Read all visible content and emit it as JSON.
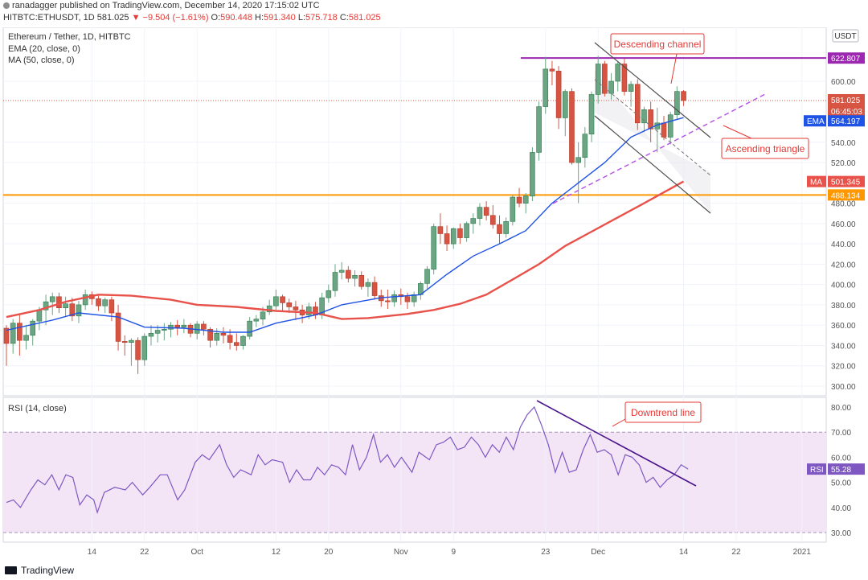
{
  "header": {
    "publisher": "ranadagger",
    "published_text": "published on TradingView.com, December 14, 2020 17:15:02 UTC",
    "symbol": "HITBTC:ETHUSDT, 1D",
    "last": "581.025",
    "change": "−9.504 (−1.61%)",
    "o_label": "O:",
    "o_value": "590.448",
    "h_label": "H:",
    "h_value": "591.340",
    "l_label": "L:",
    "l_value": "575.718",
    "c_label": "C:",
    "c_value": "581.025"
  },
  "legend": {
    "title": "Ethereum / Tether, 1D, HITBTC",
    "ema": "EMA (20, close, 0)",
    "ma": "MA (50, close, 0)",
    "rsi": "RSI (14, close)"
  },
  "footer": {
    "brand": "TradingView"
  },
  "colors": {
    "bull": "#6ba583",
    "bear": "#d75442",
    "ema": "#1e53e5",
    "ma": "#e8524a",
    "resistance": "#9c27b0",
    "support": "#ff9800",
    "rsi": "#7e57c2",
    "rsi_band": "#f3e5f5",
    "trend": "#4a148c",
    "annotation": "#e53935",
    "channel": "#4d4d4d"
  },
  "chart_data": [
    {
      "type": "candlestick",
      "title": "Ethereum / Tether, 1D, HITBTC",
      "currency": "USDT",
      "ylim": [
        290,
        640
      ],
      "y_ticks": [
        300,
        320,
        340,
        360,
        380,
        400,
        420,
        440,
        460,
        480,
        520,
        540,
        600
      ],
      "x_ticks": [
        "14",
        "22",
        "Oct",
        "12",
        "20",
        "Nov",
        "9",
        "23",
        "Dec",
        "14",
        "22",
        "2021"
      ],
      "x_tick_index": [
        14,
        22,
        30,
        42,
        50,
        61,
        69,
        83,
        91,
        104,
        112,
        122
      ],
      "x_range": [
        1,
        125
      ],
      "ohlc": [
        [
          1,
          357,
          360,
          320,
          342
        ],
        [
          2,
          342,
          366,
          332,
          362
        ],
        [
          3,
          362,
          370,
          330,
          345
        ],
        [
          4,
          345,
          360,
          336,
          350
        ],
        [
          5,
          350,
          366,
          340,
          364
        ],
        [
          6,
          364,
          378,
          355,
          375
        ],
        [
          7,
          375,
          390,
          360,
          383
        ],
        [
          8,
          383,
          392,
          370,
          388
        ],
        [
          9,
          388,
          392,
          372,
          377
        ],
        [
          10,
          377,
          388,
          368,
          381
        ],
        [
          11,
          381,
          387,
          364,
          369
        ],
        [
          12,
          369,
          384,
          362,
          380
        ],
        [
          13,
          380,
          395,
          375,
          390
        ],
        [
          14,
          390,
          393,
          380,
          386
        ],
        [
          15,
          386,
          389,
          374,
          379
        ],
        [
          16,
          379,
          387,
          372,
          385
        ],
        [
          17,
          385,
          388,
          364,
          372
        ],
        [
          18,
          372,
          380,
          335,
          344
        ],
        [
          19,
          344,
          350,
          330,
          343
        ],
        [
          20,
          343,
          347,
          320,
          345
        ],
        [
          21,
          345,
          348,
          312,
          326
        ],
        [
          22,
          326,
          352,
          320,
          349
        ],
        [
          23,
          349,
          360,
          340,
          352
        ],
        [
          24,
          352,
          360,
          343,
          355
        ],
        [
          25,
          355,
          362,
          345,
          356
        ],
        [
          26,
          356,
          363,
          348,
          360
        ],
        [
          27,
          360,
          365,
          350,
          358
        ],
        [
          28,
          358,
          366,
          352,
          360
        ],
        [
          29,
          360,
          362,
          348,
          352
        ],
        [
          30,
          352,
          364,
          346,
          361
        ],
        [
          31,
          361,
          364,
          350,
          356
        ],
        [
          32,
          356,
          358,
          338,
          345
        ],
        [
          33,
          345,
          357,
          340,
          352
        ],
        [
          34,
          352,
          358,
          342,
          350
        ],
        [
          35,
          350,
          356,
          336,
          343
        ],
        [
          36,
          343,
          352,
          335,
          340
        ],
        [
          37,
          340,
          350,
          336,
          349
        ],
        [
          38,
          349,
          368,
          346,
          364
        ],
        [
          39,
          364,
          370,
          358,
          366
        ],
        [
          40,
          366,
          378,
          360,
          373
        ],
        [
          41,
          373,
          385,
          370,
          379
        ],
        [
          42,
          379,
          395,
          375,
          388
        ],
        [
          43,
          388,
          390,
          374,
          382
        ],
        [
          44,
          382,
          386,
          372,
          378
        ],
        [
          45,
          378,
          384,
          365,
          375
        ],
        [
          46,
          375,
          380,
          362,
          370
        ],
        [
          47,
          370,
          382,
          366,
          378
        ],
        [
          48,
          378,
          383,
          366,
          370
        ],
        [
          49,
          370,
          392,
          366,
          387
        ],
        [
          50,
          387,
          400,
          382,
          394
        ],
        [
          51,
          394,
          420,
          388,
          412
        ],
        [
          52,
          412,
          422,
          405,
          414
        ],
        [
          53,
          414,
          418,
          402,
          406
        ],
        [
          54,
          406,
          414,
          398,
          409
        ],
        [
          55,
          409,
          413,
          395,
          398
        ],
        [
          56,
          398,
          406,
          388,
          402
        ],
        [
          57,
          402,
          408,
          385,
          389
        ],
        [
          58,
          389,
          395,
          378,
          384
        ],
        [
          59,
          384,
          395,
          376,
          383
        ],
        [
          60,
          383,
          394,
          378,
          390
        ],
        [
          61,
          390,
          396,
          380,
          388
        ],
        [
          62,
          388,
          392,
          376,
          383
        ],
        [
          63,
          383,
          393,
          378,
          390
        ],
        [
          64,
          390,
          403,
          385,
          401
        ],
        [
          65,
          401,
          418,
          396,
          415
        ],
        [
          66,
          415,
          460,
          410,
          457
        ],
        [
          67,
          457,
          470,
          440,
          450
        ],
        [
          68,
          450,
          458,
          433,
          440
        ],
        [
          69,
          440,
          456,
          435,
          455
        ],
        [
          70,
          455,
          460,
          440,
          446
        ],
        [
          71,
          446,
          462,
          442,
          460
        ],
        [
          72,
          460,
          470,
          450,
          465
        ],
        [
          73,
          465,
          480,
          458,
          476
        ],
        [
          74,
          476,
          482,
          463,
          468
        ],
        [
          75,
          468,
          478,
          455,
          459
        ],
        [
          76,
          459,
          468,
          440,
          450
        ],
        [
          77,
          450,
          466,
          446,
          462
        ],
        [
          78,
          462,
          488,
          458,
          486
        ],
        [
          79,
          486,
          495,
          476,
          480
        ],
        [
          80,
          480,
          490,
          470,
          487
        ],
        [
          81,
          487,
          535,
          482,
          530
        ],
        [
          82,
          530,
          580,
          522,
          575
        ],
        [
          83,
          575,
          624,
          568,
          612
        ],
        [
          84,
          612,
          620,
          596,
          610
        ],
        [
          85,
          610,
          615,
          553,
          564
        ],
        [
          86,
          564,
          592,
          546,
          590
        ],
        [
          87,
          590,
          593,
          518,
          520
        ],
        [
          88,
          520,
          540,
          480,
          525
        ],
        [
          89,
          525,
          555,
          515,
          548
        ],
        [
          90,
          548,
          590,
          540,
          587
        ],
        [
          91,
          587,
          625,
          578,
          617
        ],
        [
          92,
          617,
          620,
          585,
          588
        ],
        [
          93,
          588,
          608,
          582,
          600
        ],
        [
          94,
          600,
          619,
          590,
          617
        ],
        [
          95,
          617,
          622,
          586,
          590
        ],
        [
          96,
          590,
          600,
          575,
          597
        ],
        [
          97,
          597,
          602,
          552,
          559
        ],
        [
          98,
          559,
          575,
          550,
          572
        ],
        [
          99,
          572,
          580,
          540,
          553
        ],
        [
          100,
          553,
          574,
          530,
          559
        ],
        [
          101,
          559,
          566,
          542,
          545
        ],
        [
          102,
          545,
          570,
          538,
          567
        ],
        [
          103,
          567,
          595,
          562,
          590
        ],
        [
          104,
          590,
          591.34,
          575.718,
          581.025
        ]
      ],
      "ema20": [
        [
          1,
          355
        ],
        [
          8,
          365
        ],
        [
          12,
          372
        ],
        [
          18,
          368
        ],
        [
          22,
          358
        ],
        [
          28,
          357
        ],
        [
          34,
          353
        ],
        [
          38,
          353
        ],
        [
          42,
          362
        ],
        [
          48,
          370
        ],
        [
          52,
          380
        ],
        [
          58,
          387
        ],
        [
          64,
          390
        ],
        [
          68,
          410
        ],
        [
          72,
          428
        ],
        [
          76,
          440
        ],
        [
          80,
          453
        ],
        [
          84,
          480
        ],
        [
          88,
          500
        ],
        [
          92,
          520
        ],
        [
          96,
          545
        ],
        [
          100,
          557
        ],
        [
          104,
          564.197
        ]
      ],
      "ma50": [
        [
          1,
          368
        ],
        [
          6,
          375
        ],
        [
          10,
          383
        ],
        [
          15,
          390
        ],
        [
          20,
          389
        ],
        [
          26,
          385
        ],
        [
          30,
          380
        ],
        [
          36,
          378
        ],
        [
          42,
          374
        ],
        [
          48,
          372
        ],
        [
          52,
          366
        ],
        [
          56,
          367
        ],
        [
          62,
          371
        ],
        [
          66,
          375
        ],
        [
          70,
          381
        ],
        [
          74,
          390
        ],
        [
          78,
          405
        ],
        [
          82,
          420
        ],
        [
          86,
          438
        ],
        [
          90,
          452
        ],
        [
          94,
          466
        ],
        [
          98,
          480
        ],
        [
          104,
          501.345
        ]
      ],
      "last_price_label": "581.025",
      "countdown_label": "06:45:03",
      "ema_label": "EMA",
      "ema_value": "564.197",
      "ma_label": "MA",
      "ma_value": "501.345",
      "resistance": {
        "value": 622.807,
        "label": "622.807"
      },
      "support": {
        "value": 488.134,
        "label": "488.134"
      },
      "annotations": [
        "Descending channel",
        "Ascending triangle"
      ]
    },
    {
      "type": "line",
      "title": "RSI (14, close)",
      "ylim": [
        25,
        85
      ],
      "y_ticks": [
        30,
        40,
        50,
        60,
        70,
        80
      ],
      "band": [
        30,
        70
      ],
      "series": [
        [
          1,
          42
        ],
        [
          3,
          43
        ],
        [
          5,
          40
        ],
        [
          8,
          47
        ],
        [
          10,
          51
        ],
        [
          12,
          49
        ],
        [
          14,
          53
        ],
        [
          16,
          47
        ],
        [
          18,
          53
        ],
        [
          20,
          52
        ],
        [
          22,
          41
        ],
        [
          24,
          45
        ],
        [
          26,
          43
        ],
        [
          27,
          38
        ],
        [
          29,
          46
        ],
        [
          32,
          48
        ],
        [
          35,
          47
        ],
        [
          37,
          50
        ],
        [
          40,
          45
        ],
        [
          42,
          48
        ],
        [
          45,
          53
        ],
        [
          47,
          53
        ],
        [
          50,
          43
        ],
        [
          52,
          47
        ],
        [
          55,
          58
        ],
        [
          57,
          61
        ],
        [
          59,
          59
        ],
        [
          62,
          65
        ],
        [
          64,
          57
        ],
        [
          66,
          52
        ],
        [
          68,
          55
        ],
        [
          71,
          53
        ],
        [
          73,
          61
        ],
        [
          75,
          57
        ],
        [
          77,
          59
        ],
        [
          80,
          58
        ],
        [
          82,
          50
        ],
        [
          84,
          55
        ],
        [
          86,
          51
        ],
        [
          88,
          51
        ],
        [
          90,
          56
        ],
        [
          92,
          53
        ],
        [
          94,
          57
        ],
        [
          96,
          56
        ],
        [
          98,
          53
        ],
        [
          100,
          65
        ],
        [
          102,
          55
        ],
        [
          104,
          60
        ],
        [
          106,
          69
        ],
        [
          108,
          58
        ],
        [
          110,
          61
        ],
        [
          112,
          56
        ],
        [
          114,
          60
        ],
        [
          117,
          54
        ],
        [
          119,
          62
        ],
        [
          122,
          59
        ],
        [
          124,
          65
        ],
        [
          126,
          66
        ],
        [
          128,
          68
        ],
        [
          130,
          63
        ],
        [
          132,
          64
        ],
        [
          134,
          68
        ],
        [
          136,
          65
        ],
        [
          138,
          60
        ],
        [
          140,
          65
        ],
        [
          142,
          62
        ],
        [
          144,
          68
        ],
        [
          146,
          63
        ],
        [
          148,
          72
        ],
        [
          150,
          77
        ],
        [
          152,
          80
        ],
        [
          154,
          73
        ],
        [
          156,
          65
        ],
        [
          158,
          54
        ],
        [
          160,
          62
        ],
        [
          162,
          54
        ],
        [
          164,
          55
        ],
        [
          166,
          63
        ],
        [
          168,
          69
        ],
        [
          170,
          62
        ],
        [
          172,
          63
        ],
        [
          174,
          61
        ],
        [
          176,
          53
        ],
        [
          178,
          61
        ],
        [
          180,
          60
        ],
        [
          182,
          57
        ],
        [
          184,
          50
        ],
        [
          186,
          52
        ],
        [
          188,
          48
        ],
        [
          190,
          51
        ],
        [
          192,
          53
        ],
        [
          194,
          57
        ],
        [
          196,
          55.28
        ]
      ],
      "x_scale": 0.531,
      "last_label": "RSI",
      "last_value": "55.28",
      "annotation": "Downtrend line"
    }
  ]
}
